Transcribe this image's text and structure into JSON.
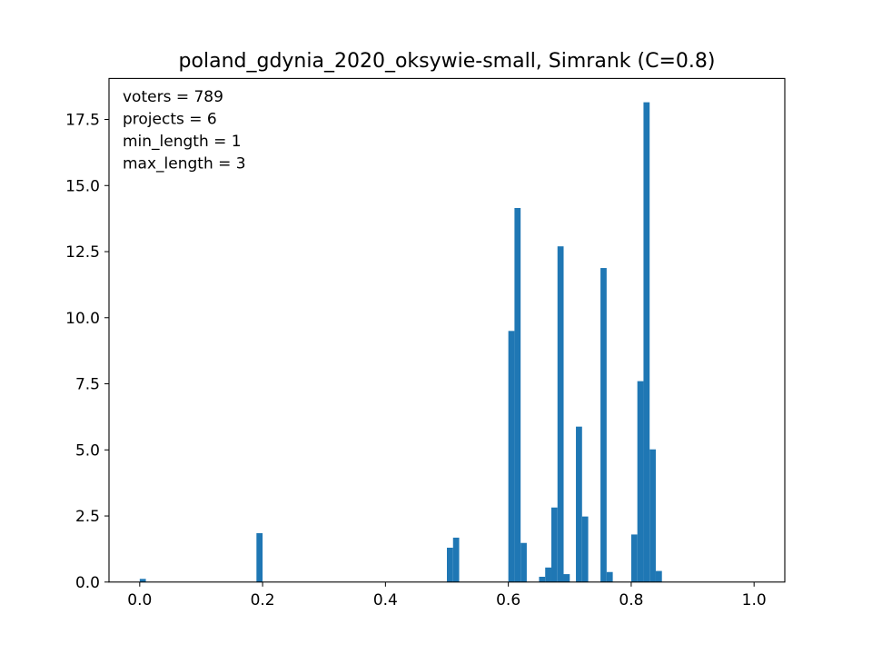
{
  "chart_data": {
    "type": "bar",
    "title": "poland_gdynia_2020_oksywie-small, Simrank (C=0.8)",
    "xlabel": "",
    "ylabel": "",
    "xlim": [
      -0.05,
      1.05
    ],
    "ylim": [
      0,
      19.05
    ],
    "grid": false,
    "legend": "none",
    "bar_color": "#1f77b4",
    "bin_width": 0.01,
    "x_ticks": [
      {
        "value": 0.0,
        "label": "0.0"
      },
      {
        "value": 0.2,
        "label": "0.2"
      },
      {
        "value": 0.4,
        "label": "0.4"
      },
      {
        "value": 0.6,
        "label": "0.6"
      },
      {
        "value": 0.8,
        "label": "0.8"
      },
      {
        "value": 1.0,
        "label": "1.0"
      }
    ],
    "y_ticks": [
      {
        "value": 0.0,
        "label": "0.0"
      },
      {
        "value": 2.5,
        "label": "2.5"
      },
      {
        "value": 5.0,
        "label": "5.0"
      },
      {
        "value": 7.5,
        "label": "7.5"
      },
      {
        "value": 10.0,
        "label": "10.0"
      },
      {
        "value": 12.5,
        "label": "12.5"
      },
      {
        "value": 15.0,
        "label": "15.0"
      },
      {
        "value": 17.5,
        "label": "17.5"
      }
    ],
    "bins": [
      {
        "x0": 0.0,
        "x1": 0.01,
        "y": 0.12
      },
      {
        "x0": 0.19,
        "x1": 0.2,
        "y": 1.85
      },
      {
        "x0": 0.5,
        "x1": 0.51,
        "y": 1.3
      },
      {
        "x0": 0.51,
        "x1": 0.52,
        "y": 1.68
      },
      {
        "x0": 0.6,
        "x1": 0.61,
        "y": 9.5
      },
      {
        "x0": 0.61,
        "x1": 0.62,
        "y": 14.15
      },
      {
        "x0": 0.62,
        "x1": 0.63,
        "y": 1.48
      },
      {
        "x0": 0.65,
        "x1": 0.66,
        "y": 0.2
      },
      {
        "x0": 0.66,
        "x1": 0.67,
        "y": 0.55
      },
      {
        "x0": 0.67,
        "x1": 0.68,
        "y": 2.82
      },
      {
        "x0": 0.68,
        "x1": 0.69,
        "y": 12.7
      },
      {
        "x0": 0.69,
        "x1": 0.7,
        "y": 0.3
      },
      {
        "x0": 0.71,
        "x1": 0.72,
        "y": 5.88
      },
      {
        "x0": 0.72,
        "x1": 0.73,
        "y": 2.48
      },
      {
        "x0": 0.75,
        "x1": 0.76,
        "y": 11.88
      },
      {
        "x0": 0.76,
        "x1": 0.77,
        "y": 0.38
      },
      {
        "x0": 0.8,
        "x1": 0.81,
        "y": 1.8
      },
      {
        "x0": 0.81,
        "x1": 0.82,
        "y": 7.6
      },
      {
        "x0": 0.82,
        "x1": 0.83,
        "y": 18.15
      },
      {
        "x0": 0.83,
        "x1": 0.84,
        "y": 5.02
      },
      {
        "x0": 0.84,
        "x1": 0.85,
        "y": 0.42
      }
    ],
    "annotations": [
      "voters = 789",
      "projects = 6",
      "min_length = 1",
      "max_length = 3"
    ]
  }
}
